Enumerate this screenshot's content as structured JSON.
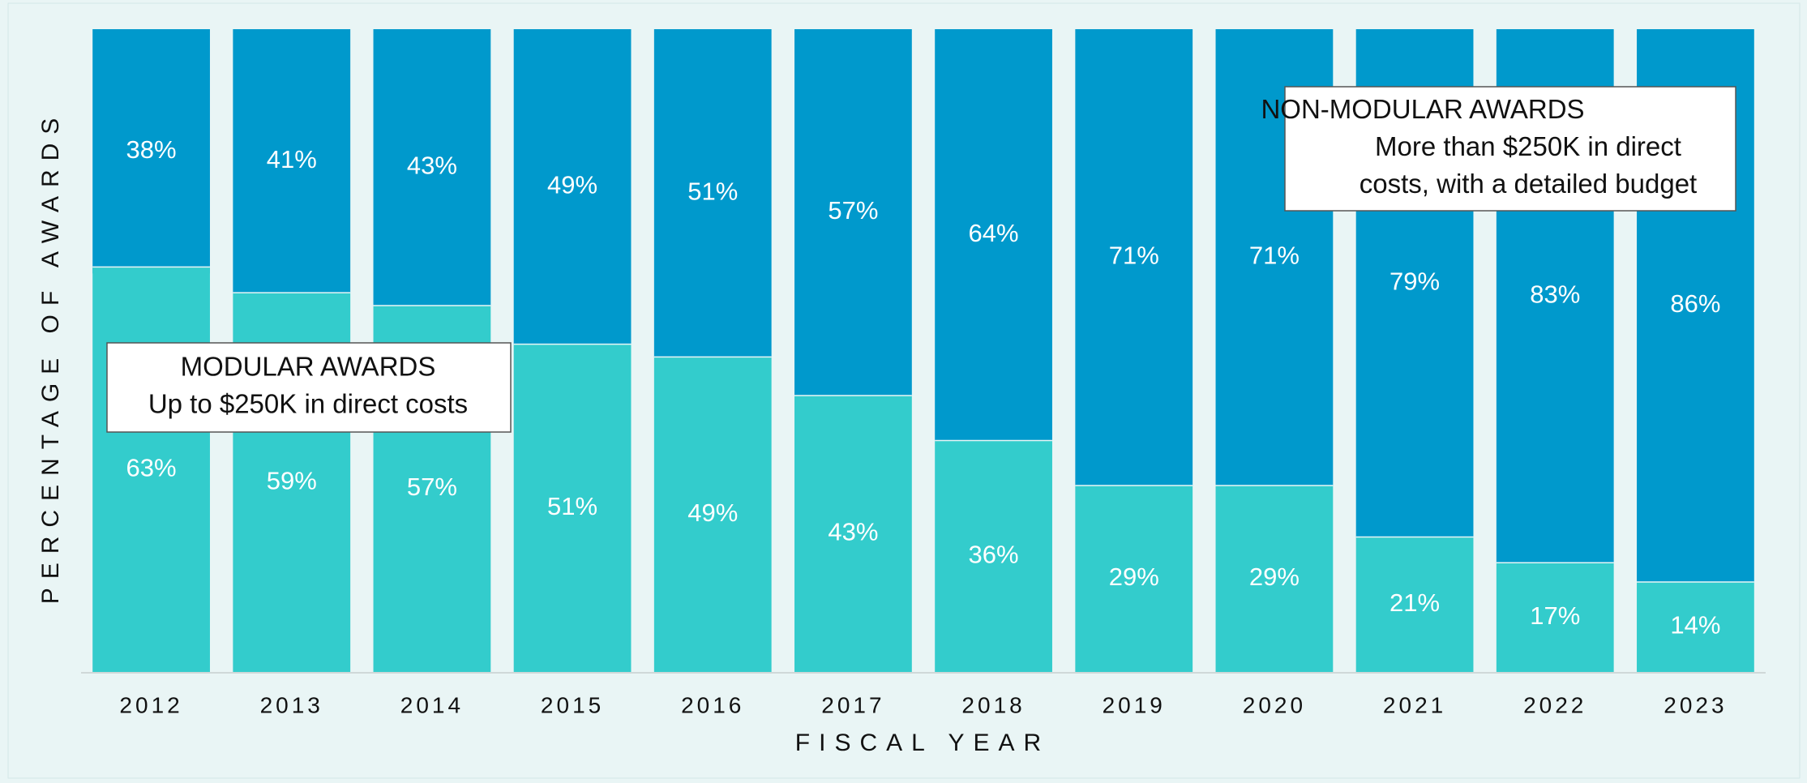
{
  "chart_data": {
    "type": "stacked_bar",
    "categories": [
      "2012",
      "2013",
      "2014",
      "2015",
      "2016",
      "2017",
      "2018",
      "2019",
      "2020",
      "2021",
      "2022",
      "2023"
    ],
    "series": [
      {
        "color": "#33cccc",
        "values": [
          63,
          59,
          57,
          51,
          49,
          43,
          36,
          29,
          29,
          21,
          17,
          14
        ]
      },
      {
        "color": "#0099cc",
        "values": [
          38,
          41,
          43,
          49,
          51,
          57,
          64,
          71,
          71,
          79,
          83,
          86
        ]
      }
    ],
    "ylim": [
      0,
      100
    ],
    "x_label": "FISCAL YEAR",
    "y_label": "PERCENTAGE OF AWARDS",
    "annotations": [
      {
        "lines": [
          "MODULAR AWARDS",
          "Up to $250K in direct costs"
        ]
      },
      {
        "lines": [
          "NON-MODULAR AWARDS",
          "More than $250K in direct",
          "costs, with a detailed budget"
        ]
      }
    ]
  }
}
